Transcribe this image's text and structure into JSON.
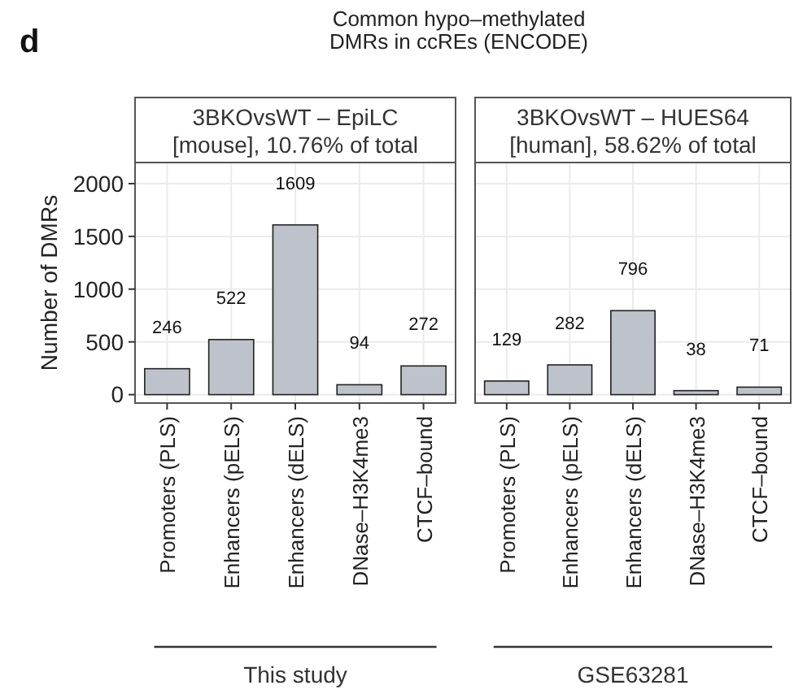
{
  "chart_data": [
    {
      "type": "bar",
      "title": "3BKOvsWT – EpiLC\n[mouse], 10.76% of total",
      "xlabel": "This study",
      "ylabel": "Number of DMRs",
      "annotations": [
        "d",
        "Common hypo–methylated\nDMRs in ccREs (ENCODE)"
      ],
      "categories": [
        "Promoters (PLS)",
        "Enhancers (pELS)",
        "Enhancers (dELS)",
        "DNase–H3K4me3",
        "CTCF–bound"
      ],
      "values": [
        246,
        522,
        1609,
        94,
        272
      ],
      "color": "#bec2ca",
      "data_labels": true,
      "ylim": [
        -80,
        2200
      ],
      "yticks": [
        0,
        500,
        1000,
        1500,
        2000
      ],
      "grid": true
    },
    {
      "type": "bar",
      "title": "3BKOvsWT – HUES64\n[human], 58.62% of total",
      "xlabel": "GSE63281",
      "categories": [
        "Promoters (PLS)",
        "Enhancers (pELS)",
        "Enhancers (dELS)",
        "DNase–H3K4me3",
        "CTCF–bound"
      ],
      "values": [
        129,
        282,
        796,
        38,
        71
      ],
      "color": "#bec2ca",
      "data_labels": true,
      "ylim": [
        -80,
        2200
      ],
      "yticks": [
        0,
        500,
        1000,
        1500,
        2000
      ],
      "grid": true,
      "tick_labels": "x"
    }
  ]
}
